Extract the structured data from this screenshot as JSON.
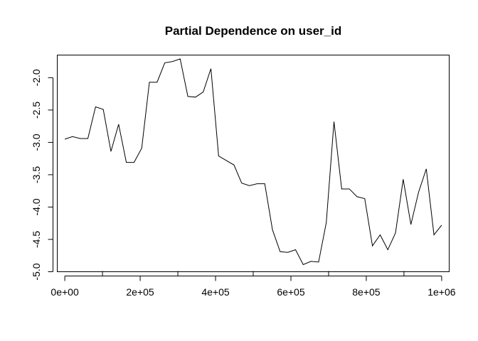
{
  "chart_data": {
    "type": "line",
    "title": "Partial Dependence on user_id",
    "xlabel": "",
    "ylabel": "",
    "xlim": [
      -20000,
      1020000
    ],
    "ylim": [
      -5.0,
      -1.65
    ],
    "x_ticks": [
      {
        "value": 0,
        "label": "0e+00"
      },
      {
        "value": 200000,
        "label": "2e+05"
      },
      {
        "value": 400000,
        "label": "4e+05"
      },
      {
        "value": 600000,
        "label": "6e+05"
      },
      {
        "value": 800000,
        "label": "8e+05"
      },
      {
        "value": 1000000,
        "label": "1e+06"
      }
    ],
    "y_ticks": [
      {
        "value": -2.0,
        "label": "-2.0"
      },
      {
        "value": -2.5,
        "label": "-2.5"
      },
      {
        "value": -3.0,
        "label": "-3.0"
      },
      {
        "value": -3.5,
        "label": "-3.5"
      },
      {
        "value": -4.0,
        "label": "-4.0"
      },
      {
        "value": -4.5,
        "label": "-4.5"
      },
      {
        "value": -5.0,
        "label": "-5.0"
      }
    ],
    "x_minor_ticks": [
      100000,
      300000,
      500000,
      700000,
      900000
    ],
    "grid": false,
    "series": [
      {
        "x": [
          0,
          20408,
          40816,
          61224,
          81633,
          102041,
          122449,
          142857,
          163265,
          183673,
          204082,
          224490,
          244898,
          265306,
          285714,
          306122,
          326531,
          346939,
          367347,
          387755,
          408163,
          428571,
          448980,
          469388,
          489796,
          510204,
          530612,
          551020,
          571429,
          591837,
          612245,
          632653,
          653061,
          673469,
          693878,
          714286,
          734694,
          755102,
          775510,
          795918,
          816327,
          836735,
          857143,
          877551,
          897959,
          918367,
          938776,
          959184,
          979592,
          1000000
        ],
        "y": [
          -2.95,
          -2.91,
          -2.94,
          -2.94,
          -2.45,
          -2.49,
          -3.14,
          -2.72,
          -3.31,
          -3.31,
          -3.09,
          -2.07,
          -2.07,
          -1.77,
          -1.75,
          -1.71,
          -2.29,
          -2.3,
          -2.22,
          -1.86,
          -3.21,
          -3.28,
          -3.35,
          -3.63,
          -3.67,
          -3.64,
          -3.64,
          -4.35,
          -4.69,
          -4.7,
          -4.66,
          -4.89,
          -4.84,
          -4.85,
          -4.24,
          -2.68,
          -3.72,
          -3.72,
          -3.84,
          -3.87,
          -4.6,
          -4.43,
          -4.66,
          -4.4,
          -3.57,
          -4.27,
          -3.77,
          -3.41,
          -4.43,
          -4.28
        ]
      }
    ]
  }
}
